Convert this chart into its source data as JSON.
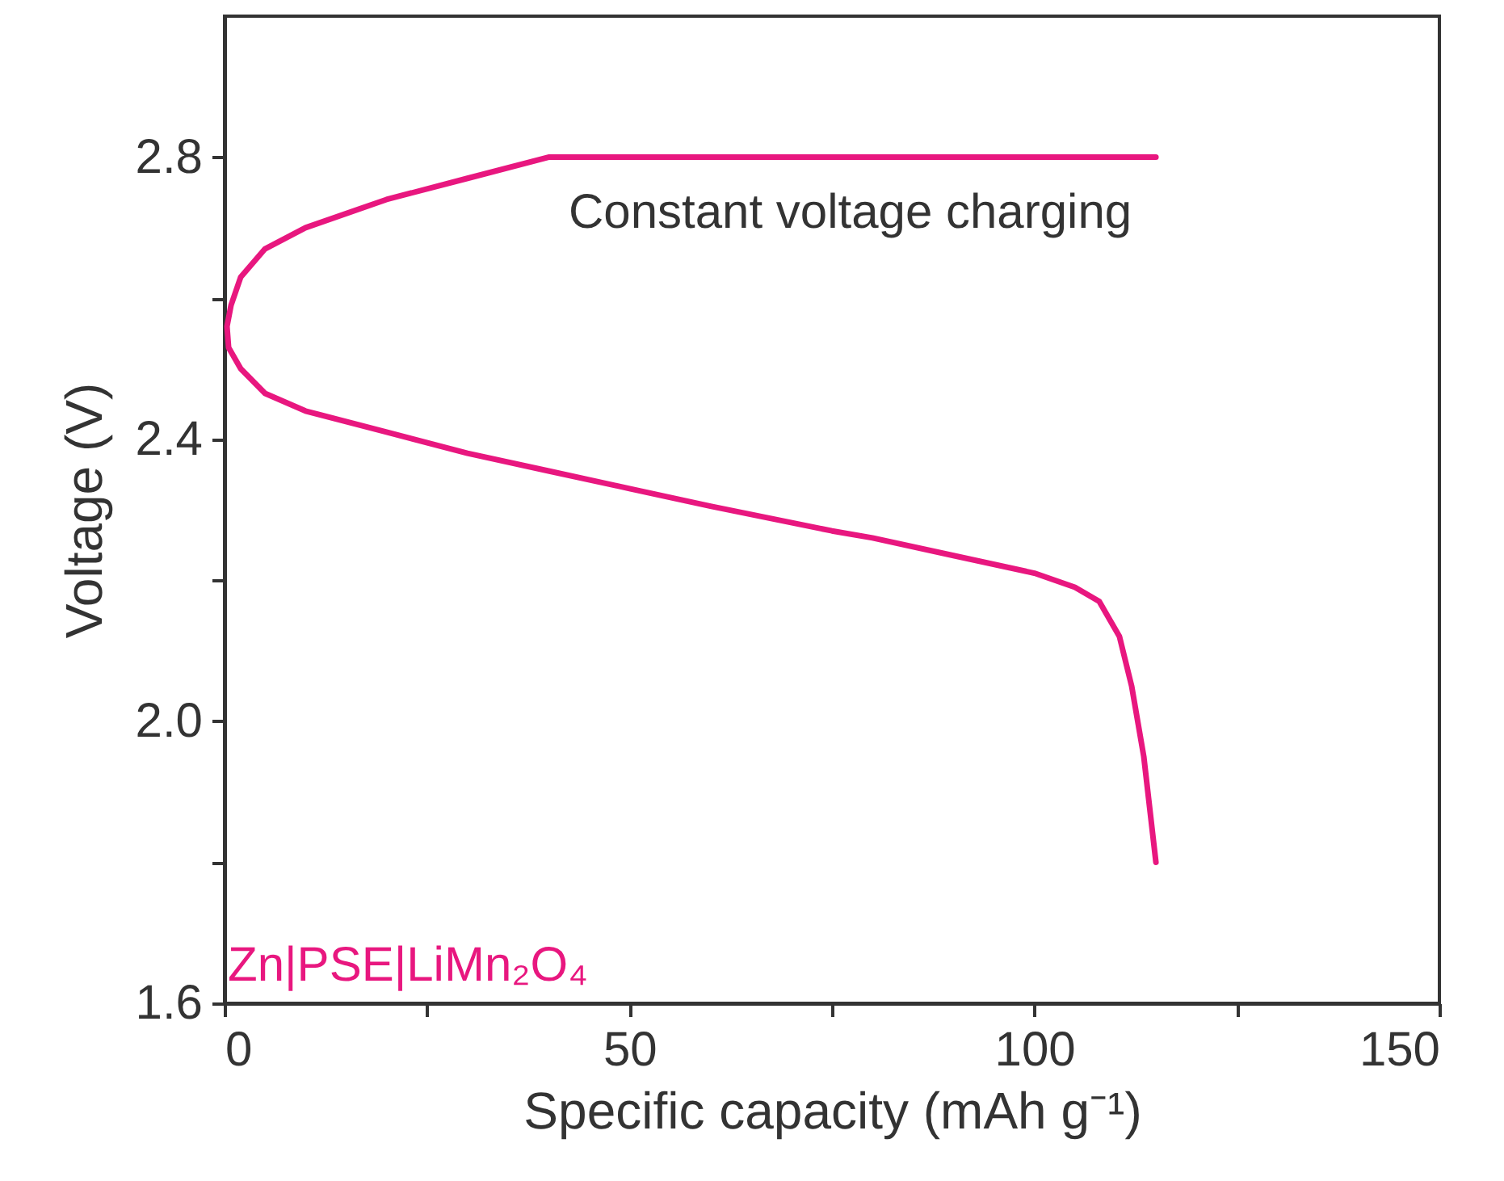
{
  "chart_data": {
    "type": "line",
    "xlabel": "Specific capacity (mAh g⁻¹)",
    "ylabel": "Voltage (V)",
    "xlim": [
      0,
      150
    ],
    "xticks": [
      0,
      {
        "value": 25,
        "label": null
      },
      50,
      {
        "value": 75,
        "label": null
      },
      100,
      {
        "value": 125,
        "label": null
      },
      150
    ],
    "ylim": [
      1.6,
      3.0
    ],
    "yticks": [
      1.6,
      {
        "value": 1.8,
        "label": null
      },
      {
        "value": 2,
        "label": "2.0"
      },
      {
        "value": 2.2,
        "label": null
      },
      2.4,
      {
        "value": 2.6,
        "label": null
      },
      2.8
    ],
    "grid": false,
    "marker": "none",
    "line_style": "solid",
    "annotations": [
      "Constant voltage charging"
    ],
    "series": [
      {
        "name": "Zn|PSE|LiMn₂O₄",
        "color": "#e8177f",
        "x": [
          115,
          114.5,
          113.5,
          112,
          110.5,
          108,
          105,
          100,
          90,
          80,
          75,
          60,
          50,
          40,
          30,
          20,
          10,
          5,
          2,
          0.5,
          0.3,
          0.8,
          2,
          5,
          10,
          20,
          30,
          40,
          115
        ],
        "values": [
          1.8,
          1.85,
          1.95,
          2.05,
          2.12,
          2.17,
          2.19,
          2.21,
          2.235,
          2.26,
          2.27,
          2.305,
          2.33,
          2.355,
          2.38,
          2.41,
          2.44,
          2.465,
          2.5,
          2.53,
          2.56,
          2.59,
          2.63,
          2.67,
          2.7,
          2.74,
          2.77,
          2.8,
          2.8
        ]
      }
    ]
  }
}
